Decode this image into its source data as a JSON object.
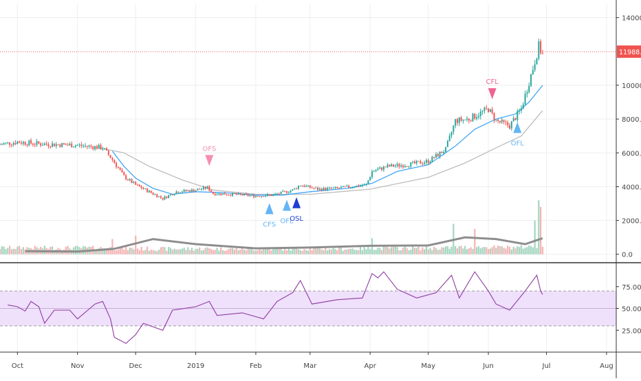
{
  "chart_data": {
    "type": "candlestick",
    "price_axis": {
      "ticks": [
        {
          "value": 0,
          "label": "0.0"
        },
        {
          "value": 2000,
          "label": "2000.0"
        },
        {
          "value": 4000,
          "label": "4000.0"
        },
        {
          "value": 6000,
          "label": "6000.0"
        },
        {
          "value": 8000,
          "label": "8000.0"
        },
        {
          "value": 10000,
          "label": "10000.0"
        },
        {
          "value": 14000,
          "label": "14000.0"
        }
      ],
      "ylim": [
        -500,
        14800
      ]
    },
    "rsi_axis": {
      "ticks": [
        {
          "value": 25,
          "label": "25.00"
        },
        {
          "value": 50,
          "label": "50.00"
        },
        {
          "value": 75,
          "label": "75.00"
        }
      ],
      "ylim": [
        0,
        100
      ],
      "band": [
        30,
        70
      ]
    },
    "time_axis": {
      "ticks": [
        {
          "label": "Oct",
          "date": "2018-10-01"
        },
        {
          "label": "Nov",
          "date": "2018-11-01"
        },
        {
          "label": "Dec",
          "date": "2018-12-01"
        },
        {
          "label": "2019",
          "date": "2019-01-01"
        },
        {
          "label": "Feb",
          "date": "2019-02-01"
        },
        {
          "label": "Mar",
          "date": "2019-03-01"
        },
        {
          "label": "Apr",
          "date": "2019-04-01"
        },
        {
          "label": "May",
          "date": "2019-05-01"
        },
        {
          "label": "Jun",
          "date": "2019-06-01"
        },
        {
          "label": "Jul",
          "date": "2019-07-01"
        },
        {
          "label": "Aug",
          "date": "2019-08-01"
        }
      ],
      "range": [
        "2018-09-22",
        "2019-08-06"
      ]
    },
    "price_line": {
      "value": 11988,
      "label": "11988.0",
      "color": "#ef5350"
    },
    "close_path": [
      {
        "date": "2018-09-22",
        "value": 6500
      },
      {
        "date": "2018-10-01",
        "value": 6650
      },
      {
        "date": "2018-10-10",
        "value": 6550
      },
      {
        "date": "2018-10-20",
        "value": 6500
      },
      {
        "date": "2018-11-01",
        "value": 6450
      },
      {
        "date": "2018-11-14",
        "value": 6300
      },
      {
        "date": "2018-11-19",
        "value": 5600
      },
      {
        "date": "2018-11-25",
        "value": 4600
      },
      {
        "date": "2018-12-01",
        "value": 4100
      },
      {
        "date": "2018-12-08",
        "value": 3700
      },
      {
        "date": "2018-12-15",
        "value": 3300
      },
      {
        "date": "2018-12-22",
        "value": 3700
      },
      {
        "date": "2019-01-01",
        "value": 3800
      },
      {
        "date": "2019-01-07",
        "value": 3950
      },
      {
        "date": "2019-01-10",
        "value": 3600
      },
      {
        "date": "2019-01-20",
        "value": 3550
      },
      {
        "date": "2019-02-01",
        "value": 3450
      },
      {
        "date": "2019-02-10",
        "value": 3500
      },
      {
        "date": "2019-02-20",
        "value": 3800
      },
      {
        "date": "2019-02-24",
        "value": 4100
      },
      {
        "date": "2019-03-05",
        "value": 3850
      },
      {
        "date": "2019-03-15",
        "value": 3900
      },
      {
        "date": "2019-03-30",
        "value": 4100
      },
      {
        "date": "2019-04-02",
        "value": 4900
      },
      {
        "date": "2019-04-10",
        "value": 5200
      },
      {
        "date": "2019-04-20",
        "value": 5300
      },
      {
        "date": "2019-05-01",
        "value": 5500
      },
      {
        "date": "2019-05-10",
        "value": 6200
      },
      {
        "date": "2019-05-15",
        "value": 7900
      },
      {
        "date": "2019-05-22",
        "value": 8000
      },
      {
        "date": "2019-06-01",
        "value": 8600
      },
      {
        "date": "2019-06-05",
        "value": 7900
      },
      {
        "date": "2019-06-12",
        "value": 7600
      },
      {
        "date": "2019-06-18",
        "value": 8600
      },
      {
        "date": "2019-06-24",
        "value": 11000
      },
      {
        "date": "2019-06-27",
        "value": 12300
      },
      {
        "date": "2019-06-29",
        "value": 11800
      }
    ],
    "ma_fast": [
      {
        "date": "2018-11-19",
        "value": 6100
      },
      {
        "date": "2018-11-25",
        "value": 5200
      },
      {
        "date": "2018-12-01",
        "value": 4500
      },
      {
        "date": "2018-12-10",
        "value": 3900
      },
      {
        "date": "2018-12-20",
        "value": 3550
      },
      {
        "date": "2019-01-01",
        "value": 3700
      },
      {
        "date": "2019-01-15",
        "value": 3650
      },
      {
        "date": "2019-02-01",
        "value": 3500
      },
      {
        "date": "2019-02-15",
        "value": 3500
      },
      {
        "date": "2019-03-01",
        "value": 3700
      },
      {
        "date": "2019-03-20",
        "value": 3900
      },
      {
        "date": "2019-04-02",
        "value": 4200
      },
      {
        "date": "2019-04-15",
        "value": 4900
      },
      {
        "date": "2019-05-01",
        "value": 5300
      },
      {
        "date": "2019-05-15",
        "value": 6400
      },
      {
        "date": "2019-05-25",
        "value": 7400
      },
      {
        "date": "2019-06-05",
        "value": 8000
      },
      {
        "date": "2019-06-15",
        "value": 8300
      },
      {
        "date": "2019-06-22",
        "value": 9000
      },
      {
        "date": "2019-06-29",
        "value": 10000
      }
    ],
    "ma_slow": [
      {
        "date": "2018-11-12",
        "value": 6300
      },
      {
        "date": "2018-11-25",
        "value": 6000
      },
      {
        "date": "2018-12-08",
        "value": 5200
      },
      {
        "date": "2018-12-25",
        "value": 4400
      },
      {
        "date": "2019-01-10",
        "value": 3800
      },
      {
        "date": "2019-02-01",
        "value": 3550
      },
      {
        "date": "2019-03-01",
        "value": 3550
      },
      {
        "date": "2019-04-01",
        "value": 3850
      },
      {
        "date": "2019-05-01",
        "value": 4550
      },
      {
        "date": "2019-05-20",
        "value": 5400
      },
      {
        "date": "2019-06-05",
        "value": 6300
      },
      {
        "date": "2019-06-18",
        "value": 7000
      },
      {
        "date": "2019-06-29",
        "value": 8500
      }
    ],
    "signals": [
      {
        "label": "OFS",
        "date": "2019-01-08",
        "direction": "down",
        "value": 5550,
        "color": "#f48fb1"
      },
      {
        "label": "CFS",
        "date": "2019-02-08",
        "direction": "up",
        "value": 2700,
        "color": "#64b5f6"
      },
      {
        "label": "OFL",
        "date": "2019-02-17",
        "direction": "up",
        "value": 2900,
        "color": "#64b5f6"
      },
      {
        "label": "OSL",
        "date": "2019-02-22",
        "direction": "up",
        "value": 3050,
        "color": "#1e3fd0"
      },
      {
        "label": "CFL",
        "date": "2019-06-03",
        "direction": "down",
        "value": 9500,
        "color": "#f06292"
      },
      {
        "label": "OFL",
        "date": "2019-06-16",
        "direction": "up",
        "value": 7500,
        "color": "#64b5f6"
      }
    ],
    "rsi_path": [
      {
        "date": "2018-09-26",
        "value": 54
      },
      {
        "date": "2018-10-01",
        "value": 52
      },
      {
        "date": "2018-10-05",
        "value": 47
      },
      {
        "date": "2018-10-08",
        "value": 58
      },
      {
        "date": "2018-10-12",
        "value": 52
      },
      {
        "date": "2018-10-15",
        "value": 33
      },
      {
        "date": "2018-10-20",
        "value": 48
      },
      {
        "date": "2018-10-28",
        "value": 48
      },
      {
        "date": "2018-11-01",
        "value": 38
      },
      {
        "date": "2018-11-10",
        "value": 55
      },
      {
        "date": "2018-11-14",
        "value": 58
      },
      {
        "date": "2018-11-18",
        "value": 38
      },
      {
        "date": "2018-11-20",
        "value": 17
      },
      {
        "date": "2018-11-26",
        "value": 10
      },
      {
        "date": "2018-12-01",
        "value": 20
      },
      {
        "date": "2018-12-05",
        "value": 33
      },
      {
        "date": "2018-12-15",
        "value": 25
      },
      {
        "date": "2018-12-20",
        "value": 48
      },
      {
        "date": "2019-01-01",
        "value": 52
      },
      {
        "date": "2019-01-08",
        "value": 58
      },
      {
        "date": "2019-01-12",
        "value": 42
      },
      {
        "date": "2019-01-25",
        "value": 45
      },
      {
        "date": "2019-02-05",
        "value": 38
      },
      {
        "date": "2019-02-12",
        "value": 58
      },
      {
        "date": "2019-02-20",
        "value": 68
      },
      {
        "date": "2019-02-24",
        "value": 82
      },
      {
        "date": "2019-03-02",
        "value": 55
      },
      {
        "date": "2019-03-15",
        "value": 60
      },
      {
        "date": "2019-03-28",
        "value": 62
      },
      {
        "date": "2019-04-02",
        "value": 90
      },
      {
        "date": "2019-04-05",
        "value": 85
      },
      {
        "date": "2019-04-08",
        "value": 92
      },
      {
        "date": "2019-04-15",
        "value": 72
      },
      {
        "date": "2019-04-25",
        "value": 62
      },
      {
        "date": "2019-05-05",
        "value": 68
      },
      {
        "date": "2019-05-13",
        "value": 88
      },
      {
        "date": "2019-05-17",
        "value": 62
      },
      {
        "date": "2019-05-25",
        "value": 92
      },
      {
        "date": "2019-06-01",
        "value": 70
      },
      {
        "date": "2019-06-05",
        "value": 55
      },
      {
        "date": "2019-06-12",
        "value": 48
      },
      {
        "date": "2019-06-20",
        "value": 70
      },
      {
        "date": "2019-06-26",
        "value": 88
      },
      {
        "date": "2019-06-28",
        "value": 70
      },
      {
        "date": "2019-06-29",
        "value": 66
      }
    ],
    "volume_ma_path": [
      {
        "date": "2018-10-05",
        "value": 180
      },
      {
        "date": "2018-11-01",
        "value": 160
      },
      {
        "date": "2018-11-20",
        "value": 320
      },
      {
        "date": "2018-12-10",
        "value": 900
      },
      {
        "date": "2019-01-01",
        "value": 600
      },
      {
        "date": "2019-02-01",
        "value": 350
      },
      {
        "date": "2019-03-01",
        "value": 400
      },
      {
        "date": "2019-04-01",
        "value": 500
      },
      {
        "date": "2019-05-01",
        "value": 520
      },
      {
        "date": "2019-05-20",
        "value": 1000
      },
      {
        "date": "2019-06-05",
        "value": 900
      },
      {
        "date": "2019-06-20",
        "value": 600
      },
      {
        "date": "2019-06-29",
        "value": 950
      }
    ],
    "volume_spikes": [
      {
        "date": "2018-11-19",
        "value": 900
      },
      {
        "date": "2018-12-01",
        "value": 1100
      },
      {
        "date": "2019-04-02",
        "value": 950
      },
      {
        "date": "2019-05-14",
        "value": 1800
      },
      {
        "date": "2019-05-25",
        "value": 1500
      },
      {
        "date": "2019-06-25",
        "value": 2000
      },
      {
        "date": "2019-06-27",
        "value": 3200
      },
      {
        "date": "2019-06-28",
        "value": 2800
      }
    ],
    "colors": {
      "up": "#26a69a",
      "down": "#ef5350",
      "vol_up": "#a5d6c1",
      "vol_down": "#f4b5b5",
      "ma_fast": "#42a5f5",
      "ma_slow": "#bdbdbd",
      "volume_ma": "#8d8d8d",
      "rsi": "#8e3ba0",
      "rsi_band": "#efe0fb",
      "grid": "#eeeeee",
      "axis_text": "#444444",
      "divider": "#333333"
    }
  }
}
